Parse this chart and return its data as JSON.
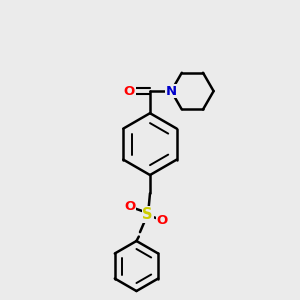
{
  "background_color": "#ebebeb",
  "bond_color": "#000000",
  "atom_colors": {
    "O": "#ff0000",
    "N": "#0000cc",
    "S": "#cccc00",
    "C": "#000000"
  },
  "figsize": [
    3.0,
    3.0
  ],
  "dpi": 100
}
